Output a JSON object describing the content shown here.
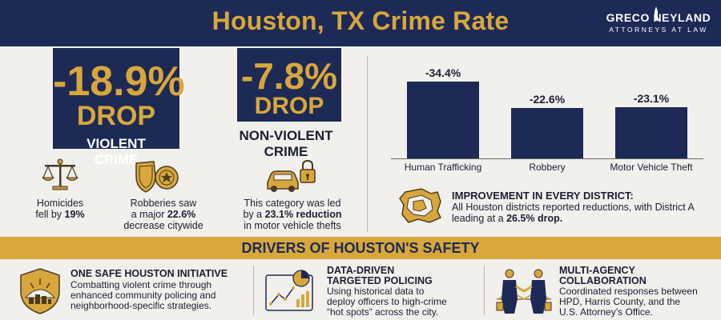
{
  "header": {
    "title": "Houston, TX Crime Rate",
    "logo_name": "GRECO NEYLAND",
    "logo_sub": "ATTORNEYS AT LAW"
  },
  "violent": {
    "pct": "-18.9%",
    "drop": "DROP",
    "label_line1": "VIOLENT",
    "label_line2": "CRIME"
  },
  "nonviolent": {
    "pct": "-7.8%",
    "drop": "DROP",
    "label_line1": "NON-VIOLENT",
    "label_line2": "CRIME"
  },
  "captions": {
    "homicides": {
      "line1": "Homicides",
      "line2_pre": "fell by ",
      "line2_bold": "19%"
    },
    "robberies": {
      "line1": "Robberies saw",
      "line2_pre": "a major ",
      "line2_bold": "22.6%",
      "line3": "decrease citywide"
    },
    "category": {
      "line1": "This category was led",
      "line2_pre": "by a ",
      "line2_bold": "23.1% reduction",
      "line3": "in motor vehicle thefts"
    }
  },
  "chart_data": {
    "type": "bar",
    "categories": [
      "Human Trafficking",
      "Robbery",
      "Motor Vehicle Theft"
    ],
    "values": [
      -34.4,
      -22.6,
      -23.1
    ],
    "value_labels": [
      "-34.4%",
      "-22.6%",
      "-23.1%"
    ],
    "title": "",
    "xlabel": "",
    "ylabel": ""
  },
  "district": {
    "title": "IMPROVEMENT IN EVERY DISTRICT:",
    "text_pre": "All Houston districts reported reductions, with District A leading at a ",
    "text_bold": "26.5% drop."
  },
  "drivers": {
    "band_title": "DRIVERS OF HOUSTON'S SAFETY",
    "items": [
      {
        "title_line1": "ONE SAFE HOUSTON INITIATIVE",
        "title_line2": "",
        "text": [
          "Combatting violent crime through",
          "enhanced community policing and",
          "neighborhood-specific strategies."
        ]
      },
      {
        "title_line1": "DATA-DRIVEN",
        "title_line2": "TARGETED POLICING",
        "text": [
          "Using historical data to",
          "deploy officers to high-crime",
          "“hot spots” across the city."
        ]
      },
      {
        "title_line1": "MULTI-AGENCY",
        "title_line2": "COLLABORATION",
        "text": [
          "Coordinated responses between",
          "HPD, Harris County, and the",
          "U.S. Attorney’s Office."
        ]
      }
    ]
  },
  "colors": {
    "navy": "#1d2a55",
    "gold": "#d8a73c",
    "background": "#f2f0ec"
  },
  "icons": [
    "scales-icon",
    "badge-icon",
    "car-lock-icon",
    "houston-map-icon",
    "sunrise-shield-icon",
    "data-chart-icon",
    "handshake-icon",
    "logo-tower-icon"
  ]
}
